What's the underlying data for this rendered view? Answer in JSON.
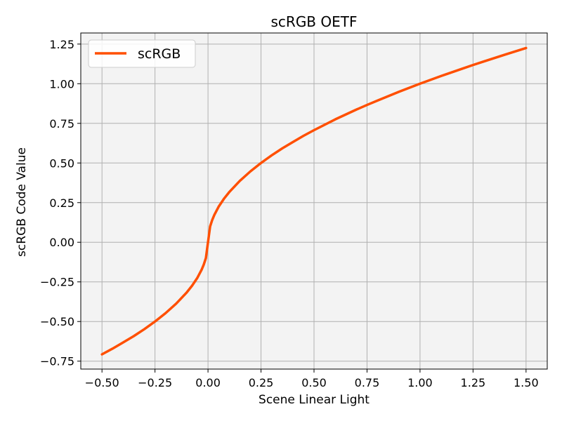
{
  "chart_data": {
    "type": "line",
    "title": "scRGB OETF",
    "xlabel": "Scene Linear Light",
    "ylabel": "scRGB Code Value",
    "xlim": [
      -0.6,
      1.6
    ],
    "ylim": [
      -0.8,
      1.32
    ],
    "xticks": [
      -0.5,
      -0.25,
      0.0,
      0.25,
      0.5,
      0.75,
      1.0,
      1.25,
      1.5
    ],
    "xtick_labels": [
      "−0.50",
      "−0.25",
      "0.00",
      "0.25",
      "0.50",
      "0.75",
      "1.00",
      "1.25",
      "1.50"
    ],
    "yticks": [
      -0.75,
      -0.5,
      -0.25,
      0.0,
      0.25,
      0.5,
      0.75,
      1.0,
      1.25
    ],
    "ytick_labels": [
      "−0.75",
      "−0.50",
      "−0.25",
      "0.00",
      "0.25",
      "0.50",
      "0.75",
      "1.00",
      "1.25"
    ],
    "grid": true,
    "legend_position": "top-left",
    "series": [
      {
        "name": "scRGB",
        "color": "#ff4f00",
        "x": [
          -0.5,
          -0.45,
          -0.4,
          -0.35,
          -0.3,
          -0.25,
          -0.2,
          -0.15,
          -0.1,
          -0.075,
          -0.05,
          -0.03,
          -0.02,
          -0.01,
          0.0,
          0.01,
          0.02,
          0.03,
          0.05,
          0.075,
          0.1,
          0.15,
          0.2,
          0.25,
          0.3,
          0.35,
          0.4,
          0.45,
          0.5,
          0.6,
          0.7,
          0.75,
          0.8,
          0.9,
          1.0,
          1.1,
          1.2,
          1.25,
          1.3,
          1.4,
          1.5
        ],
        "y": [
          -0.707,
          -0.671,
          -0.632,
          -0.592,
          -0.548,
          -0.5,
          -0.447,
          -0.387,
          -0.316,
          -0.274,
          -0.224,
          -0.173,
          -0.141,
          -0.1,
          0.0,
          0.1,
          0.141,
          0.173,
          0.224,
          0.274,
          0.316,
          0.387,
          0.447,
          0.5,
          0.548,
          0.592,
          0.632,
          0.671,
          0.707,
          0.775,
          0.837,
          0.866,
          0.894,
          0.949,
          1.0,
          1.049,
          1.095,
          1.118,
          1.14,
          1.183,
          1.225
        ]
      }
    ],
    "plot_background": "#f3f3f3",
    "grid_color": "#b0b0b0"
  }
}
